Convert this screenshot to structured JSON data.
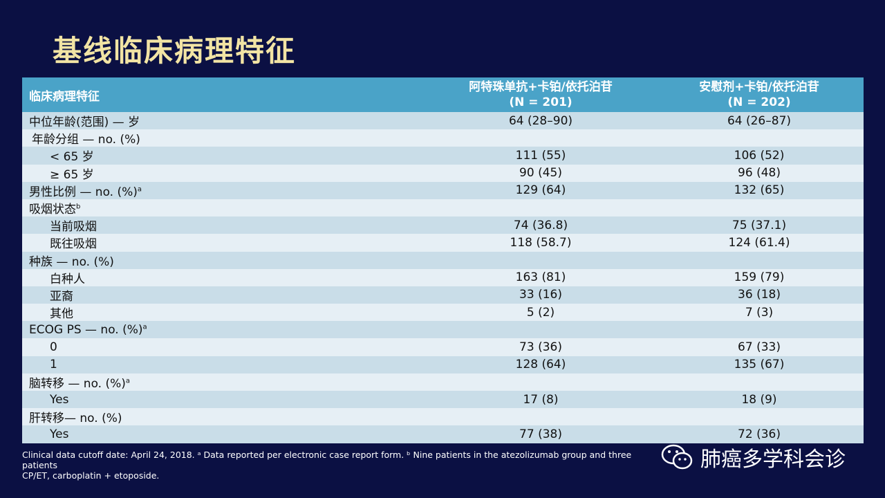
{
  "title": "基线临床病理特征",
  "header": {
    "col1": "临床病理特征",
    "col2_line1": "阿特珠单抗+卡铂/依托泊苷",
    "col2_line2": "(N = 201)",
    "col3_line1": "安慰剂+卡铂/依托泊苷",
    "col3_line2": "(N = 202)"
  },
  "rows": [
    {
      "label": "中位年龄(范围) — 岁",
      "sup": "",
      "v1": "64 (28–90)",
      "v2": "64 (26–87)"
    },
    {
      "label": "年龄分组 — no. (%)",
      "sup": "",
      "v1": "",
      "v2": ""
    },
    {
      "label": "< 65 岁",
      "sup": "",
      "v1": "111 (55)",
      "v2": "106 (52)"
    },
    {
      "label": "≥ 65 岁",
      "sup": "",
      "v1": "90 (45)",
      "v2": "96 (48)"
    },
    {
      "label": "男性比例 — no. (%)",
      "sup": "a",
      "v1": "129 (64)",
      "v2": "132 (65)"
    },
    {
      "label": "吸烟状态",
      "sup": "b",
      "v1": "",
      "v2": ""
    },
    {
      "label": "当前吸烟",
      "sup": "",
      "v1": "74 (36.8)",
      "v2": "75 (37.1)"
    },
    {
      "label": "既往吸烟",
      "sup": "",
      "v1": "118 (58.7)",
      "v2": "124 (61.4)"
    },
    {
      "label": "种族 — no. (%)",
      "sup": "",
      "v1": "",
      "v2": ""
    },
    {
      "label": "白种人",
      "sup": "",
      "v1": "163 (81)",
      "v2": "159 (79)"
    },
    {
      "label": "亚裔",
      "sup": "",
      "v1": "33 (16)",
      "v2": "36 (18)"
    },
    {
      "label": "其他",
      "sup": "",
      "v1": "5 (2)",
      "v2": "7 (3)"
    },
    {
      "label": "ECOG PS — no. (%)",
      "sup": "a",
      "v1": "",
      "v2": ""
    },
    {
      "label": "0",
      "sup": "",
      "v1": "73 (36)",
      "v2": "67 (33)"
    },
    {
      "label": "1",
      "sup": "",
      "v1": "128 (64)",
      "v2": "135 (67)"
    },
    {
      "label": "脑转移 — no. (%)",
      "sup": "a",
      "v1": "",
      "v2": ""
    },
    {
      "label": "Yes",
      "sup": "",
      "v1": "17 (8)",
      "v2": "18 (9)"
    },
    {
      "label": "肝转移— no. (%)",
      "sup": "",
      "v1": "",
      "v2": ""
    },
    {
      "label": "Yes",
      "sup": "",
      "v1": "77 (38)",
      "v2": "72 (36)"
    }
  ],
  "footnote_line1": "Clinical data cutoff date: April 24, 2018. ᵃ Data reported per electronic case report form. ᵇ Nine patients in the atezolizumab  group and three patients",
  "footnote_line2": "CP/ET, carboplatin + etoposide.",
  "watermark": "肺癌多学科会诊",
  "watermark_icon": "wechat-icon"
}
